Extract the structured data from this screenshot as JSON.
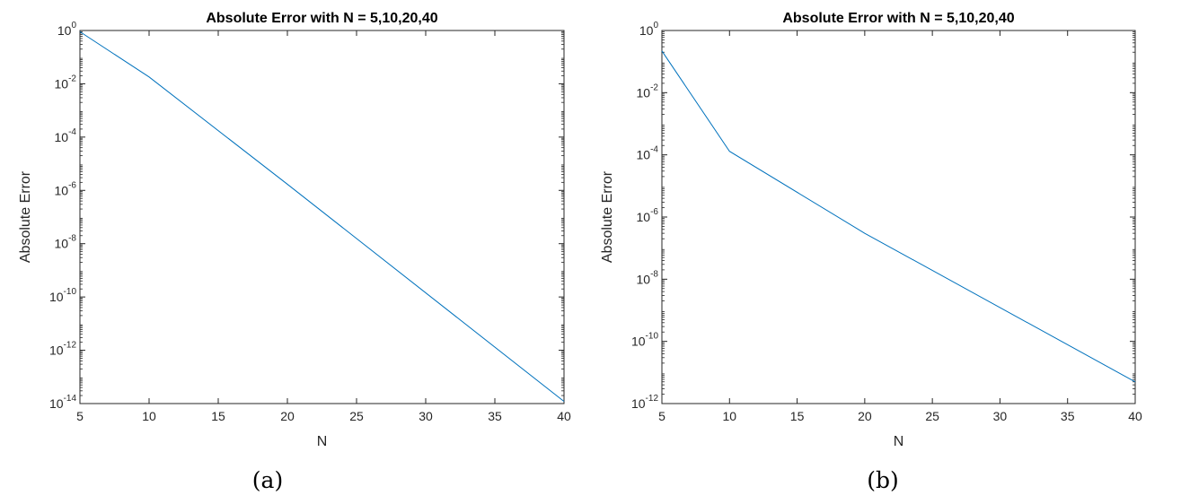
{
  "chart_data": [
    {
      "type": "line",
      "panel_caption": "(a)",
      "title": "Absolute Error with N = 5,10,20,40",
      "xlabel": "N",
      "ylabel": "Absolute Error",
      "xlim": [
        5,
        40
      ],
      "ylim": [
        1e-14,
        1
      ],
      "yscale": "log",
      "grid": false,
      "xticks": [
        5,
        10,
        15,
        20,
        25,
        30,
        35,
        40
      ],
      "yticks": [
        {
          "base": "10",
          "exp": "0"
        },
        {
          "base": "10",
          "exp": "-2"
        },
        {
          "base": "10",
          "exp": "-4"
        },
        {
          "base": "10",
          "exp": "-6"
        },
        {
          "base": "10",
          "exp": "-8"
        },
        {
          "base": "10",
          "exp": "-10"
        },
        {
          "base": "10",
          "exp": "-12"
        },
        {
          "base": "10",
          "exp": "-14"
        }
      ],
      "series": [
        {
          "color": "#0072bd",
          "x": [
            5,
            10,
            20,
            40
          ],
          "y": [
            0.9,
            0.018,
            1.7e-06,
            1.2e-14
          ]
        }
      ]
    },
    {
      "type": "line",
      "panel_caption": "(b)",
      "title": "Absolute Error with N = 5,10,20,40",
      "xlabel": "N",
      "ylabel": "Absolute Error",
      "xlim": [
        5,
        40
      ],
      "ylim": [
        1e-12,
        1
      ],
      "yscale": "log",
      "grid": false,
      "xticks": [
        5,
        10,
        15,
        20,
        25,
        30,
        35,
        40
      ],
      "yticks": [
        {
          "base": "10",
          "exp": "0"
        },
        {
          "base": "10",
          "exp": "-2"
        },
        {
          "base": "10",
          "exp": "-4"
        },
        {
          "base": "10",
          "exp": "-6"
        },
        {
          "base": "10",
          "exp": "-8"
        },
        {
          "base": "10",
          "exp": "-10"
        },
        {
          "base": "10",
          "exp": "-12"
        }
      ],
      "series": [
        {
          "color": "#0072bd",
          "x": [
            5,
            10,
            20,
            40
          ],
          "y": [
            0.22,
            0.00013,
            3e-07,
            5e-12
          ]
        }
      ]
    }
  ]
}
